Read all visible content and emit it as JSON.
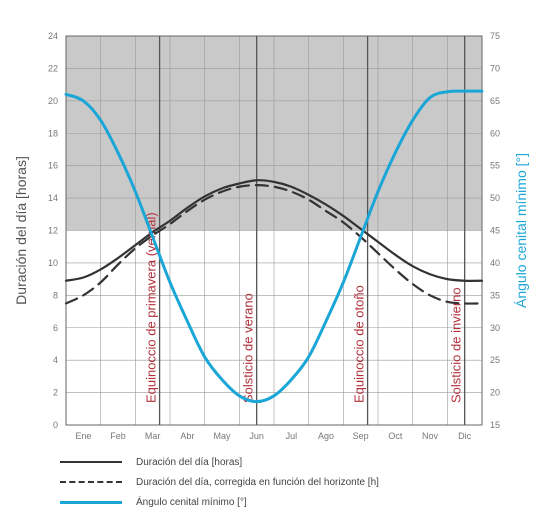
{
  "chart_data": {
    "type": "line",
    "ylabel_left": "Duración del día [horas]",
    "ylabel_right": "Ángulo cenital mínimo [°]",
    "categories": [
      "Ene",
      "Feb",
      "Mar",
      "Abr",
      "May",
      "Jun",
      "Jul",
      "Ago",
      "Sep",
      "Oct",
      "Nov",
      "Dic"
    ],
    "y_left": {
      "ylim": [
        0,
        24
      ],
      "ticks": [
        0,
        2,
        4,
        6,
        8,
        10,
        12,
        14,
        16,
        18,
        20,
        22,
        24
      ]
    },
    "y_right": {
      "ylim": [
        15,
        75
      ],
      "ticks": [
        15,
        20,
        25,
        30,
        35,
        40,
        45,
        50,
        55,
        60,
        65,
        70,
        75
      ]
    },
    "grid": true,
    "night_shading": "above 12 h (gray band)",
    "series": [
      {
        "name": "Duración del día [horas]",
        "axis": "left",
        "color": "#333333",
        "style": "solid",
        "x": [
          0,
          0.5,
          1,
          1.5,
          2,
          2.5,
          3,
          3.5,
          4,
          4.5,
          5,
          5.5,
          6,
          6.5,
          7,
          7.5,
          8,
          8.5,
          9,
          9.5,
          10,
          10.5,
          11,
          11.5,
          12
        ],
        "values": [
          8.9,
          9.1,
          9.6,
          10.3,
          11.1,
          11.9,
          12.6,
          13.4,
          14.1,
          14.6,
          14.9,
          15.1,
          15.0,
          14.7,
          14.2,
          13.6,
          12.9,
          12.1,
          11.3,
          10.5,
          9.8,
          9.3,
          9.0,
          8.9,
          8.9
        ]
      },
      {
        "name": "Duración del día, corregida en función del horizonte [h]",
        "axis": "left",
        "color": "#333333",
        "style": "dashed",
        "x": [
          0,
          0.5,
          1,
          1.5,
          2,
          2.5,
          3,
          3.5,
          4,
          4.5,
          5,
          5.5,
          6,
          6.5,
          7,
          7.5,
          8,
          8.5,
          9,
          9.5,
          10,
          10.5,
          11,
          11.5,
          12
        ],
        "values": [
          7.5,
          8.0,
          8.8,
          9.9,
          10.9,
          11.7,
          12.4,
          13.2,
          13.9,
          14.4,
          14.7,
          14.8,
          14.7,
          14.4,
          13.9,
          13.2,
          12.5,
          11.6,
          10.6,
          9.6,
          8.7,
          8.0,
          7.6,
          7.5,
          7.5
        ]
      },
      {
        "name": "Ángulo cenital mínimo [°]",
        "axis": "right",
        "color": "#1aa6d6",
        "style": "solid",
        "x": [
          0,
          0.5,
          1,
          1.5,
          2,
          2.5,
          3,
          3.5,
          4,
          4.5,
          5,
          5.5,
          6,
          6.5,
          7,
          7.5,
          8,
          8.5,
          9,
          9.5,
          10,
          10.5,
          11,
          11.5,
          12
        ],
        "values": [
          66,
          65,
          62,
          57,
          51,
          44,
          37,
          31,
          25.5,
          22,
          19.5,
          18.6,
          19.5,
          22,
          25.5,
          31,
          37,
          44,
          51,
          57,
          62,
          65.5,
          66.4,
          66.5,
          66.5
        ]
      }
    ],
    "vertical_markers": [
      {
        "x": 2.7,
        "label": "Equinoccio de primavera (vernal)"
      },
      {
        "x": 5.5,
        "label": "Solsticio de verano"
      },
      {
        "x": 8.7,
        "label": "Equinoccio de otoño"
      },
      {
        "x": 11.5,
        "label": "Solsticio de invierno"
      }
    ]
  },
  "legend": {
    "items": [
      {
        "label": "Duración del día [horas]",
        "color": "#333333",
        "style": "solid"
      },
      {
        "label": "Duración del día, corregida en función del horizonte [h]",
        "color": "#333333",
        "style": "dashed"
      },
      {
        "label": "Ángulo cenital mínimo [°]",
        "color": "#1aa6d6",
        "style": "solid"
      }
    ]
  }
}
